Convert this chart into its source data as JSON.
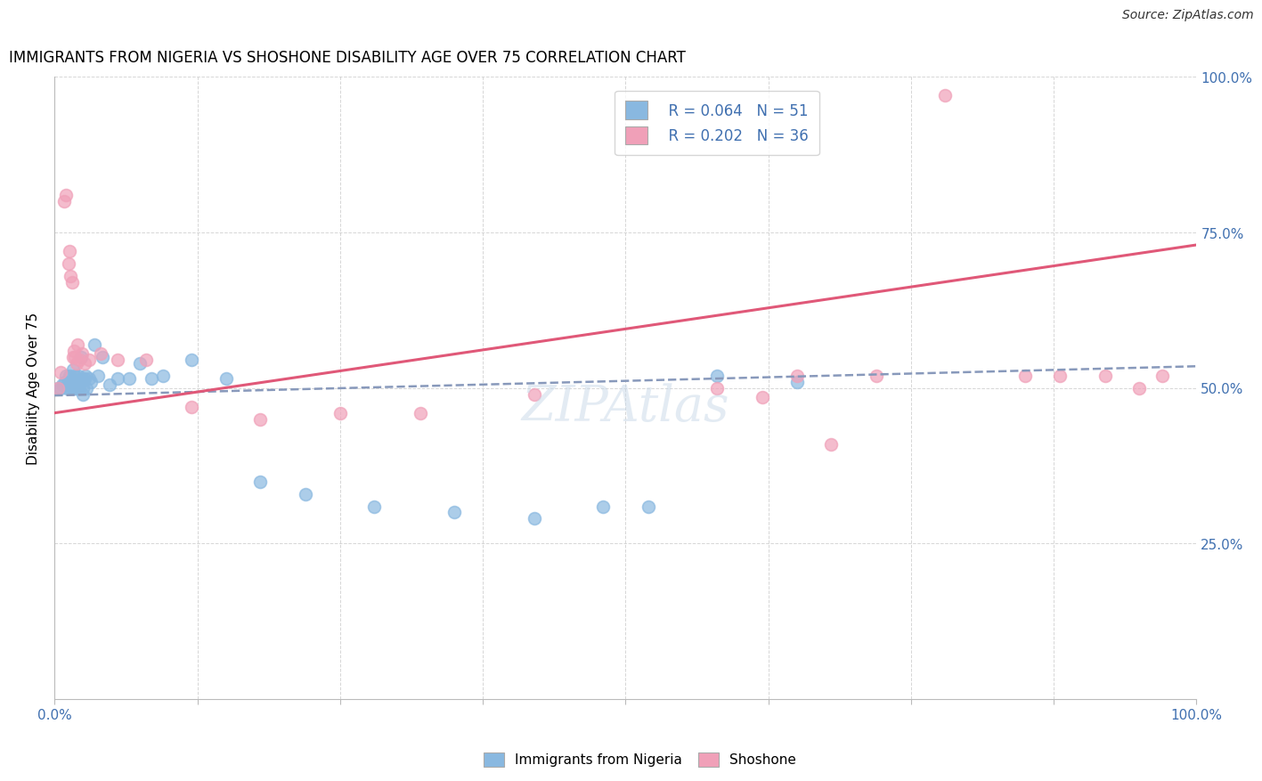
{
  "title": "IMMIGRANTS FROM NIGERIA VS SHOSHONE DISABILITY AGE OVER 75 CORRELATION CHART",
  "source": "Source: ZipAtlas.com",
  "ylabel": "Disability Age Over 75",
  "blue_color": "#89b8e0",
  "pink_color": "#f0a0b8",
  "blue_line_color": "#4878a8",
  "pink_line_color": "#e05878",
  "legend_r_blue": "R = 0.064",
  "legend_n_blue": "N = 51",
  "legend_r_pink": "R = 0.202",
  "legend_n_pink": "N = 36",
  "xlim": [
    0.0,
    1.0
  ],
  "ylim": [
    0.0,
    1.0
  ],
  "x_ticks": [
    0.0,
    0.125,
    0.25,
    0.375,
    0.5,
    0.625,
    0.75,
    0.875,
    1.0
  ],
  "y_ticks": [
    0.0,
    0.25,
    0.5,
    0.75,
    1.0
  ],
  "blue_x": [
    0.003,
    0.005,
    0.007,
    0.009,
    0.01,
    0.011,
    0.012,
    0.013,
    0.013,
    0.014,
    0.015,
    0.015,
    0.016,
    0.016,
    0.017,
    0.018,
    0.018,
    0.019,
    0.02,
    0.021,
    0.022,
    0.022,
    0.023,
    0.024,
    0.025,
    0.025,
    0.026,
    0.027,
    0.028,
    0.03,
    0.032,
    0.035,
    0.038,
    0.042,
    0.048,
    0.055,
    0.065,
    0.075,
    0.085,
    0.095,
    0.12,
    0.15,
    0.18,
    0.22,
    0.28,
    0.35,
    0.42,
    0.48,
    0.52,
    0.58,
    0.65
  ],
  "blue_y": [
    0.5,
    0.5,
    0.505,
    0.51,
    0.52,
    0.5,
    0.51,
    0.52,
    0.5,
    0.51,
    0.505,
    0.5,
    0.53,
    0.51,
    0.5,
    0.52,
    0.5,
    0.5,
    0.505,
    0.52,
    0.51,
    0.5,
    0.55,
    0.515,
    0.5,
    0.49,
    0.515,
    0.52,
    0.5,
    0.515,
    0.51,
    0.57,
    0.52,
    0.55,
    0.505,
    0.515,
    0.515,
    0.54,
    0.515,
    0.52,
    0.545,
    0.515,
    0.35,
    0.33,
    0.31,
    0.3,
    0.29,
    0.31,
    0.31,
    0.52,
    0.51
  ],
  "pink_x": [
    0.003,
    0.005,
    0.008,
    0.01,
    0.012,
    0.013,
    0.014,
    0.015,
    0.016,
    0.017,
    0.018,
    0.019,
    0.02,
    0.022,
    0.024,
    0.026,
    0.03,
    0.04,
    0.055,
    0.08,
    0.12,
    0.18,
    0.25,
    0.32,
    0.42,
    0.58,
    0.62,
    0.65,
    0.68,
    0.72,
    0.78,
    0.85,
    0.88,
    0.92,
    0.95,
    0.97
  ],
  "pink_y": [
    0.5,
    0.525,
    0.8,
    0.81,
    0.7,
    0.72,
    0.68,
    0.67,
    0.55,
    0.56,
    0.55,
    0.54,
    0.57,
    0.545,
    0.555,
    0.54,
    0.545,
    0.555,
    0.545,
    0.545,
    0.47,
    0.45,
    0.46,
    0.46,
    0.49,
    0.5,
    0.485,
    0.52,
    0.41,
    0.52,
    0.97,
    0.52,
    0.52,
    0.52,
    0.5,
    0.52
  ],
  "blue_trend_x": [
    0.0,
    1.0
  ],
  "blue_trend_y": [
    0.488,
    0.535
  ],
  "pink_trend_x": [
    0.0,
    1.0
  ],
  "pink_trend_y": [
    0.46,
    0.73
  ]
}
